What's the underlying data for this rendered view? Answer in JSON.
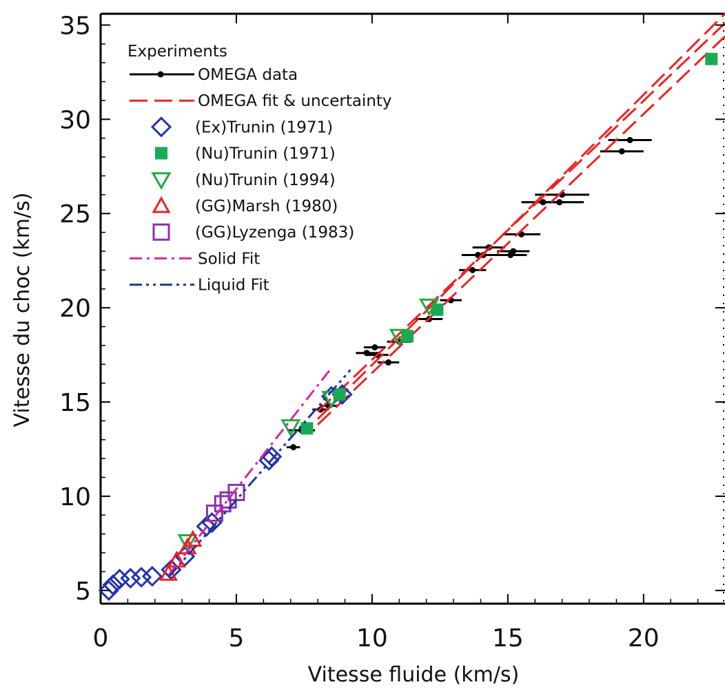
{
  "chart_data": {
    "type": "scatter",
    "xlabel": "Vitesse fluide (km/s)",
    "ylabel": "Vitesse du choc (km/s)",
    "xlim": [
      0,
      23
    ],
    "ylim": [
      4.3,
      35.6
    ],
    "xticks": [
      "0",
      "5",
      "10",
      "15",
      "20"
    ],
    "xtick_values": [
      0,
      5,
      10,
      15,
      20
    ],
    "yticks": [
      "5",
      "10",
      "15",
      "20",
      "25",
      "30",
      "35"
    ],
    "ytick_values": [
      5,
      10,
      15,
      20,
      25,
      30,
      35
    ],
    "legend_title": "Experiments",
    "legend_position": "top-left",
    "series": [
      {
        "name": "OMEGA data",
        "kind": "errorbar",
        "color": "#000000",
        "points": [
          {
            "x": 7.1,
            "y": 12.6,
            "xerr": 0.25
          },
          {
            "x": 7.4,
            "y": 13.5,
            "xerr": 0.5
          },
          {
            "x": 8.1,
            "y": 14.6,
            "xerr": 0.3
          },
          {
            "x": 8.4,
            "y": 14.8,
            "xerr": 0.3
          },
          {
            "x": 9.8,
            "y": 17.6,
            "xerr": 0.4
          },
          {
            "x": 10.1,
            "y": 17.9,
            "xerr": 0.4
          },
          {
            "x": 10.2,
            "y": 17.5,
            "xerr": 0.4
          },
          {
            "x": 10.6,
            "y": 17.1,
            "xerr": 0.4
          },
          {
            "x": 11.0,
            "y": 18.2,
            "xerr": 0.45
          },
          {
            "x": 12.1,
            "y": 19.4,
            "xerr": 0.5
          },
          {
            "x": 12.9,
            "y": 20.4,
            "xerr": 0.4
          },
          {
            "x": 13.7,
            "y": 22.0,
            "xerr": 0.5
          },
          {
            "x": 13.9,
            "y": 22.8,
            "xerr": 0.6
          },
          {
            "x": 14.1,
            "y": 22.8,
            "xerr": 0.6
          },
          {
            "x": 14.3,
            "y": 23.2,
            "xerr": 0.6
          },
          {
            "x": 15.1,
            "y": 22.8,
            "xerr": 0.6
          },
          {
            "x": 15.2,
            "y": 23.0,
            "xerr": 0.6
          },
          {
            "x": 15.5,
            "y": 23.9,
            "xerr": 0.7
          },
          {
            "x": 16.3,
            "y": 25.6,
            "xerr": 0.8
          },
          {
            "x": 16.9,
            "y": 25.6,
            "xerr": 0.9
          },
          {
            "x": 17.0,
            "y": 26.0,
            "xerr": 1.0
          },
          {
            "x": 19.2,
            "y": 28.3,
            "xerr": 0.8
          },
          {
            "x": 19.5,
            "y": 28.9,
            "xerr": 0.8
          }
        ]
      },
      {
        "name": "OMEGA fit & uncertainty",
        "kind": "dashed-lines",
        "color": "#ee2222",
        "lines": [
          [
            [
              8.0,
              14.1
            ],
            [
              23.0,
              35.6
            ]
          ],
          [
            [
              8.0,
              14.5
            ],
            [
              23.0,
              35.1
            ]
          ],
          [
            [
              8.0,
              13.8
            ],
            [
              23.0,
              34.4
            ]
          ]
        ]
      },
      {
        "name": "(Ex)Trunin (1971)",
        "kind": "diamond",
        "color": "#2233aa",
        "points": [
          [
            0.3,
            5.0
          ],
          [
            0.45,
            5.3
          ],
          [
            0.7,
            5.6
          ],
          [
            1.1,
            5.65
          ],
          [
            1.5,
            5.7
          ],
          [
            1.9,
            5.75
          ],
          [
            2.6,
            6.1
          ],
          [
            3.1,
            6.8
          ],
          [
            3.9,
            8.4
          ],
          [
            4.1,
            8.6
          ],
          [
            6.2,
            11.9
          ],
          [
            6.3,
            12.1
          ],
          [
            8.5,
            15.3
          ],
          [
            8.9,
            15.4
          ]
        ]
      },
      {
        "name": "(Nu)Trunin (1971)",
        "kind": "square-filled",
        "color": "#1aaa55",
        "points": [
          [
            7.6,
            13.6
          ],
          [
            8.8,
            15.4
          ],
          [
            11.3,
            18.5
          ],
          [
            12.4,
            19.9
          ],
          [
            22.5,
            33.2
          ]
        ]
      },
      {
        "name": "(Nu)Trunin (1994)",
        "kind": "triangle-down",
        "color": "#22aa44",
        "points": [
          [
            3.2,
            7.6
          ],
          [
            7.0,
            13.7
          ],
          [
            8.5,
            15.2
          ],
          [
            11.0,
            18.5
          ],
          [
            12.1,
            20.1
          ]
        ]
      },
      {
        "name": "(GG)Marsh (1980)",
        "kind": "triangle-up",
        "color": "#ee2222",
        "points": [
          [
            2.5,
            5.9
          ],
          [
            2.8,
            6.6
          ],
          [
            3.2,
            7.3
          ],
          [
            3.4,
            7.7
          ]
        ]
      },
      {
        "name": "(GG)Lyzenga (1983)",
        "kind": "square-open",
        "color": "#8833aa",
        "points": [
          [
            4.2,
            9.1
          ],
          [
            4.5,
            9.6
          ],
          [
            4.7,
            9.8
          ],
          [
            5.0,
            10.2
          ]
        ]
      },
      {
        "name": "Solid Fit",
        "kind": "dash-dot",
        "color": "#dd22aa",
        "lines": [
          [
            [
              2.5,
              5.8
            ],
            [
              8.5,
              16.8
            ]
          ]
        ]
      },
      {
        "name": "Liquid Fit",
        "kind": "dash-dot-dot",
        "color": "#223399",
        "lines": [
          [
            [
              2.5,
              5.7
            ],
            [
              9.2,
              16.7
            ]
          ]
        ]
      }
    ]
  }
}
